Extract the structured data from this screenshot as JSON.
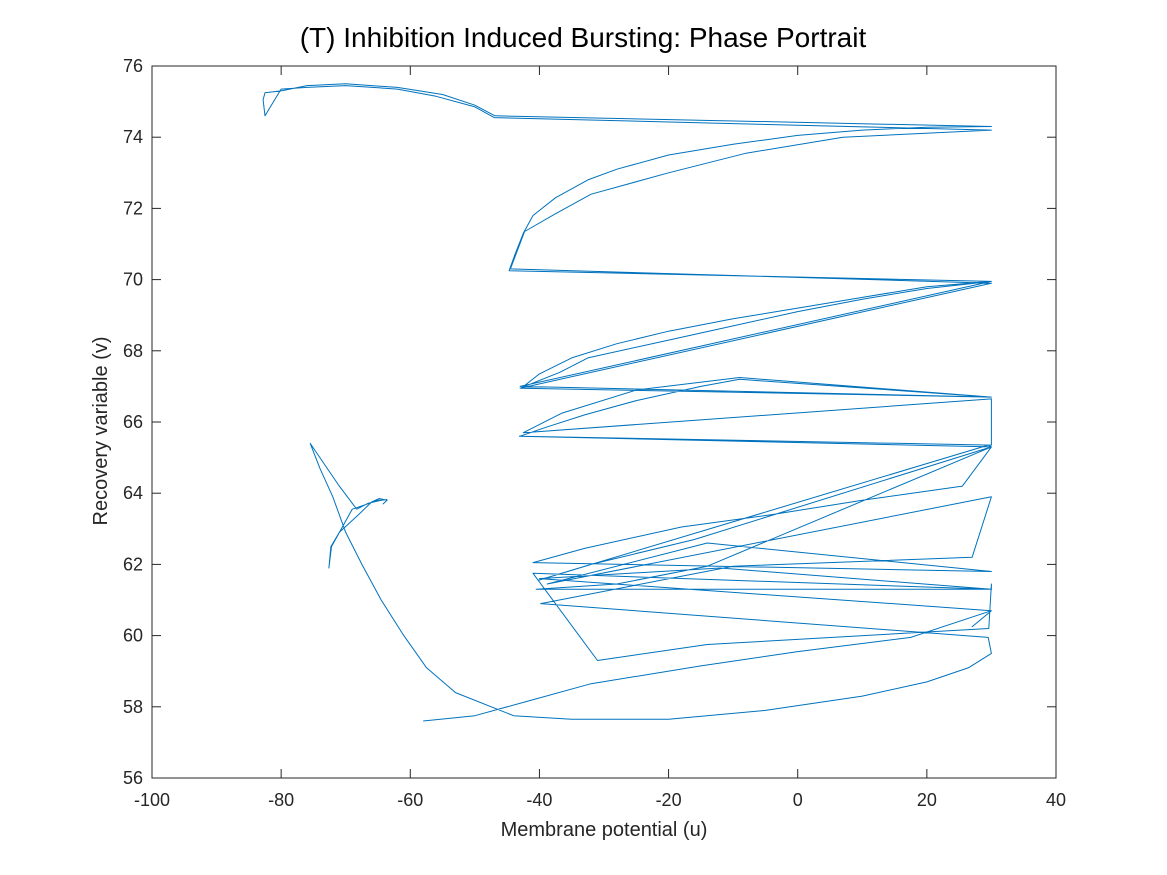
{
  "chart_data": {
    "type": "line",
    "title": "(T) Inhibition Induced Bursting: Phase Portrait",
    "xlabel": "Membrane potential (u)",
    "ylabel": "Recovery variable (v)",
    "xlim": [
      -100,
      40
    ],
    "ylim": [
      56,
      76
    ],
    "xticks": [
      -100,
      -80,
      -60,
      -40,
      -20,
      0,
      20,
      40
    ],
    "yticks": [
      56,
      58,
      60,
      62,
      64,
      66,
      68,
      70,
      72,
      74,
      76
    ],
    "grid": false,
    "legend": "none",
    "series": [
      {
        "color": "#0072BD",
        "x": [
          -63.6,
          -64.2,
          -63.6,
          -64.8,
          -66,
          -68,
          -71,
          -72.3,
          -72.6,
          -72.2,
          -69,
          -65,
          -63.6,
          -64.5,
          -66.5,
          -68.3,
          -71,
          -75.5,
          -74,
          -72,
          -70,
          -67.5,
          -64.5,
          -61,
          -57.5,
          -53,
          -44,
          -35,
          -20,
          -5,
          10,
          20,
          26.5,
          30,
          29.5,
          -39.8,
          -10,
          27,
          30,
          -38.8,
          -14,
          30,
          -41,
          -33,
          -18,
          -4,
          10,
          25.5,
          30,
          29.5,
          -40.2,
          -32,
          -16,
          30,
          -43,
          -39,
          -33,
          -25,
          -15,
          -9,
          30,
          -42.8,
          -40,
          -35,
          -28,
          -20,
          -10,
          0,
          10,
          20,
          30,
          -44.7,
          -43.8,
          -42.5,
          -41,
          -37.5,
          -32.5,
          -28,
          -20,
          -10,
          0,
          10,
          20,
          30,
          -46.9,
          -50,
          -55,
          -62,
          -70,
          -76,
          -80,
          -82.5,
          -82.8,
          -82.5,
          -80,
          -76,
          -70,
          -62,
          -56,
          -50,
          -47,
          30,
          7,
          -8,
          -20,
          -32,
          -37.5,
          -42.3,
          -44.5,
          30,
          -43,
          -36.8,
          -32.5,
          -20,
          -10,
          0,
          10,
          20,
          30,
          -43,
          30,
          -9,
          -25,
          -36.5,
          -42.5,
          30,
          30,
          -43.1,
          30,
          -14,
          -28,
          -40.5,
          30,
          30,
          29.6,
          -14,
          -31,
          -41,
          30,
          -12,
          -40,
          30,
          27,
          30,
          17.5,
          0,
          -15,
          -32,
          -42,
          -50,
          -58
        ],
        "y": [
          63.8,
          63.7,
          63.8,
          63.85,
          63.75,
          63.4,
          62.9,
          62.5,
          61.9,
          62.5,
          63.55,
          63.8,
          63.82,
          63.8,
          63.72,
          63.55,
          64.2,
          65.4,
          64.7,
          63.9,
          62.9,
          62,
          61,
          60,
          59.1,
          58.4,
          57.75,
          57.65,
          57.65,
          57.9,
          58.3,
          58.7,
          59.1,
          59.5,
          59.95,
          60.9,
          61.95,
          62.2,
          63.9,
          61.45,
          62.6,
          61.8,
          62.05,
          62.45,
          63.05,
          63.4,
          63.8,
          64.2,
          65.3,
          65.35,
          61.55,
          62,
          62.7,
          65.3,
          65.6,
          65.85,
          66.2,
          66.6,
          67,
          67.2,
          66.7,
          66.95,
          67.35,
          67.8,
          68.2,
          68.55,
          68.9,
          69.2,
          69.5,
          69.8,
          69.95,
          70.25,
          70.7,
          71.3,
          71.8,
          72.3,
          72.8,
          73.1,
          73.5,
          73.8,
          74.05,
          74.2,
          74.28,
          74.3,
          74.6,
          74.9,
          75.2,
          75.4,
          75.5,
          75.45,
          75.3,
          75.25,
          75.05,
          74.6,
          75.35,
          75.4,
          75.45,
          75.35,
          75.15,
          74.85,
          74.55,
          74.2,
          74,
          73.55,
          73,
          72.4,
          71.85,
          71.35,
          70.3,
          69.9,
          66.95,
          67.4,
          67.8,
          68.3,
          68.7,
          69.1,
          69.45,
          69.75,
          69.95,
          67,
          66.7,
          67.25,
          66.9,
          66.25,
          65.7,
          66.65,
          65.35,
          65.6,
          65.3,
          61.95,
          61.45,
          61.3,
          61.3,
          61.45,
          60.2,
          59.75,
          59.3,
          61.75,
          61.3,
          61.9,
          61.6,
          60.7,
          60.25,
          60.7,
          59.95,
          59.55,
          59.15,
          58.65,
          58.15,
          57.75,
          57.6
        ]
      }
    ]
  }
}
